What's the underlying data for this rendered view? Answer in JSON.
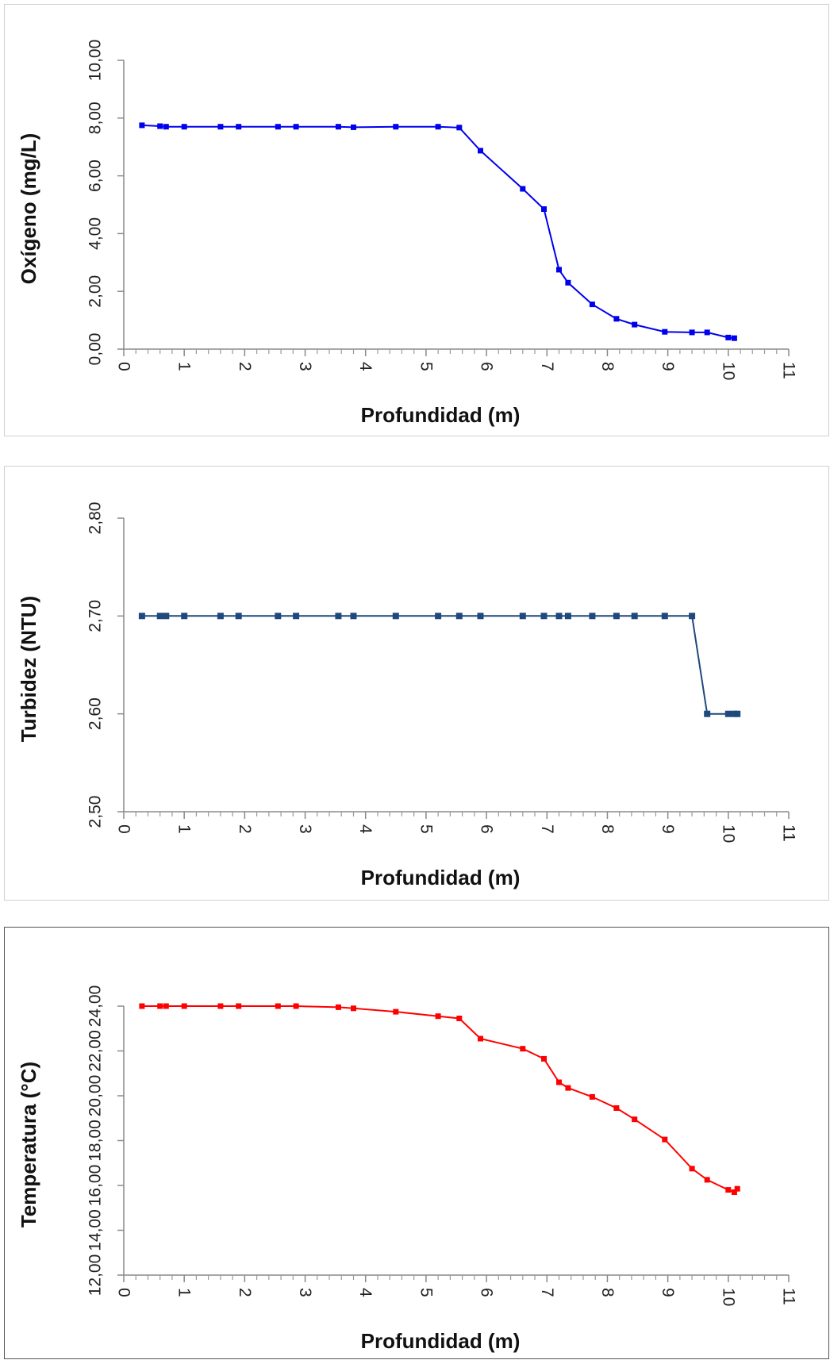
{
  "chart_data": [
    {
      "type": "line",
      "xlabel": "Profundidad (m)",
      "ylabel": "Oxígeno (mg/L)",
      "xlim": [
        0,
        11
      ],
      "ylim": [
        0,
        10
      ],
      "x_ticks": [
        "0",
        "1",
        "2",
        "3",
        "4",
        "5",
        "6",
        "7",
        "8",
        "9",
        "10",
        "11"
      ],
      "y_ticks": [
        "0,00",
        "2,00",
        "4,00",
        "6,00",
        "8,00",
        "10,00"
      ],
      "y_tick_values": [
        0,
        2,
        4,
        6,
        8,
        10
      ],
      "grid": false,
      "color": "#0000ee",
      "series": [
        {
          "x": [
            0.3,
            0.6,
            0.7,
            1.0,
            1.6,
            1.9,
            2.55,
            2.85,
            3.55,
            3.8,
            4.5,
            5.2,
            5.55,
            5.9,
            6.6,
            6.95,
            7.2,
            7.35,
            7.75,
            8.15,
            8.45,
            8.95,
            9.4,
            9.65,
            10.0,
            10.1
          ],
          "y": [
            7.75,
            7.72,
            7.7,
            7.7,
            7.7,
            7.7,
            7.7,
            7.7,
            7.7,
            7.68,
            7.7,
            7.7,
            7.67,
            6.87,
            5.55,
            4.85,
            2.75,
            2.3,
            1.55,
            1.05,
            0.85,
            0.6,
            0.58,
            0.58,
            0.4,
            0.38
          ]
        }
      ]
    },
    {
      "type": "line",
      "xlabel": "Profundidad (m)",
      "ylabel": "Turbidez (NTU)",
      "xlim": [
        0,
        11
      ],
      "ylim": [
        2.5,
        2.8
      ],
      "x_ticks": [
        "0",
        "1",
        "2",
        "3",
        "4",
        "5",
        "6",
        "7",
        "8",
        "9",
        "10",
        "11"
      ],
      "y_ticks": [
        "2,50",
        "2,60",
        "2,70",
        "2,80"
      ],
      "y_tick_values": [
        2.5,
        2.6,
        2.7,
        2.8
      ],
      "grid": false,
      "color": "#1f497d",
      "series": [
        {
          "x": [
            0.3,
            0.6,
            0.7,
            1.0,
            1.6,
            1.9,
            2.55,
            2.85,
            3.55,
            3.8,
            4.5,
            5.2,
            5.55,
            5.9,
            6.6,
            6.95,
            7.2,
            7.35,
            7.75,
            8.15,
            8.45,
            8.95,
            9.4,
            9.65,
            10.0,
            10.1,
            10.15
          ],
          "y": [
            2.7,
            2.7,
            2.7,
            2.7,
            2.7,
            2.7,
            2.7,
            2.7,
            2.7,
            2.7,
            2.7,
            2.7,
            2.7,
            2.7,
            2.7,
            2.7,
            2.7,
            2.7,
            2.7,
            2.7,
            2.7,
            2.7,
            2.7,
            2.6,
            2.6,
            2.6,
            2.6
          ]
        }
      ]
    },
    {
      "type": "line",
      "xlabel": "Profundidad (m)",
      "ylabel": "Temperatura (°C)",
      "xlim": [
        0,
        11
      ],
      "ylim": [
        12,
        24
      ],
      "x_ticks": [
        "0",
        "1",
        "2",
        "3",
        "4",
        "5",
        "6",
        "7",
        "8",
        "9",
        "10",
        "11"
      ],
      "y_ticks": [
        "12,00",
        "14,00",
        "16,00",
        "18,00",
        "20,00",
        "22,00",
        "24,00"
      ],
      "y_tick_values": [
        12,
        14,
        16,
        18,
        20,
        22,
        24
      ],
      "grid": false,
      "color": "#ff0000",
      "series": [
        {
          "x": [
            0.3,
            0.6,
            0.7,
            1.0,
            1.6,
            1.9,
            2.55,
            2.85,
            3.55,
            3.8,
            4.5,
            5.2,
            5.55,
            5.9,
            6.6,
            6.95,
            7.2,
            7.35,
            7.75,
            8.15,
            8.45,
            8.95,
            9.4,
            9.65,
            10.0,
            10.1,
            10.15
          ],
          "y": [
            24.0,
            24.0,
            24.0,
            24.0,
            24.0,
            24.0,
            24.0,
            24.0,
            23.95,
            23.9,
            23.75,
            23.55,
            23.45,
            22.55,
            22.1,
            21.65,
            20.6,
            20.35,
            19.95,
            19.45,
            18.95,
            18.05,
            16.75,
            16.25,
            15.8,
            15.7,
            15.85
          ]
        }
      ]
    }
  ]
}
